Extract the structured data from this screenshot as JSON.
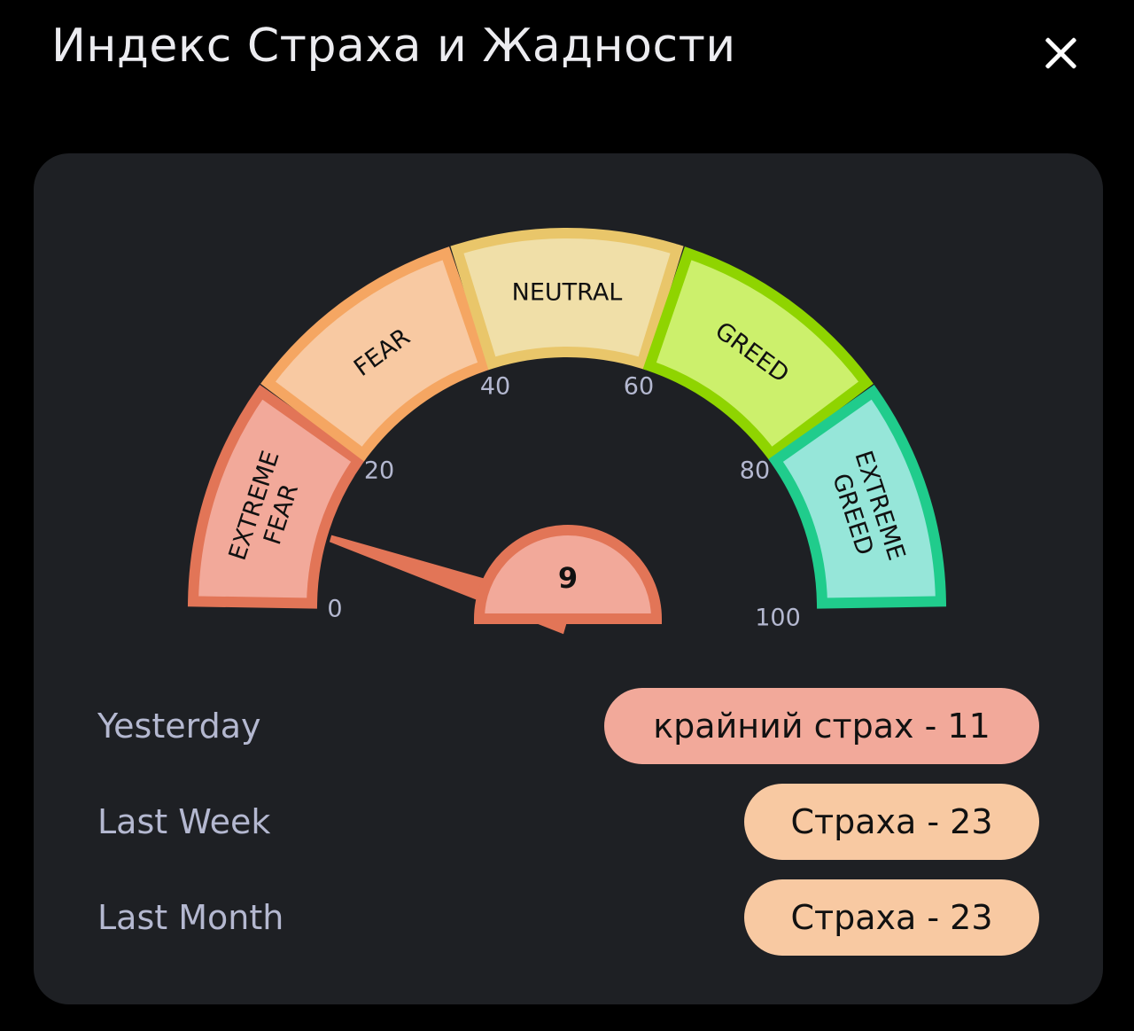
{
  "header": {
    "title": "Индекс Страха и Жадности",
    "close_icon": "close-icon"
  },
  "gauge": {
    "value": 9,
    "min": 0,
    "max": 100,
    "ticks": [
      "0",
      "20",
      "40",
      "60",
      "80",
      "100"
    ],
    "segments": [
      {
        "label": [
          "EXTREME",
          "FEAR"
        ],
        "fill": "#f2a99a",
        "stroke": "#e27557"
      },
      {
        "label": [
          "FEAR"
        ],
        "fill": "#f8c9a2",
        "stroke": "#f5a662"
      },
      {
        "label": [
          "NEUTRAL"
        ],
        "fill": "#f0dfa8",
        "stroke": "#e9c66a"
      },
      {
        "label": [
          "GREED"
        ],
        "fill": "#ccf06c",
        "stroke": "#8fd400"
      },
      {
        "label": [
          "EXTREME",
          "GREED"
        ],
        "fill": "#96e6d9",
        "stroke": "#20cc8c"
      }
    ],
    "needle_color": "#e27557",
    "hub_fill": "#f2a99a"
  },
  "history": [
    {
      "label": "Yesterday",
      "value": "крайний страх - 11",
      "color": "#f2a99a"
    },
    {
      "label": "Last Week",
      "value": "Страха - 23",
      "color": "#f8c9a2"
    },
    {
      "label": "Last Month",
      "value": "Страха - 23",
      "color": "#f8c9a2"
    }
  ]
}
